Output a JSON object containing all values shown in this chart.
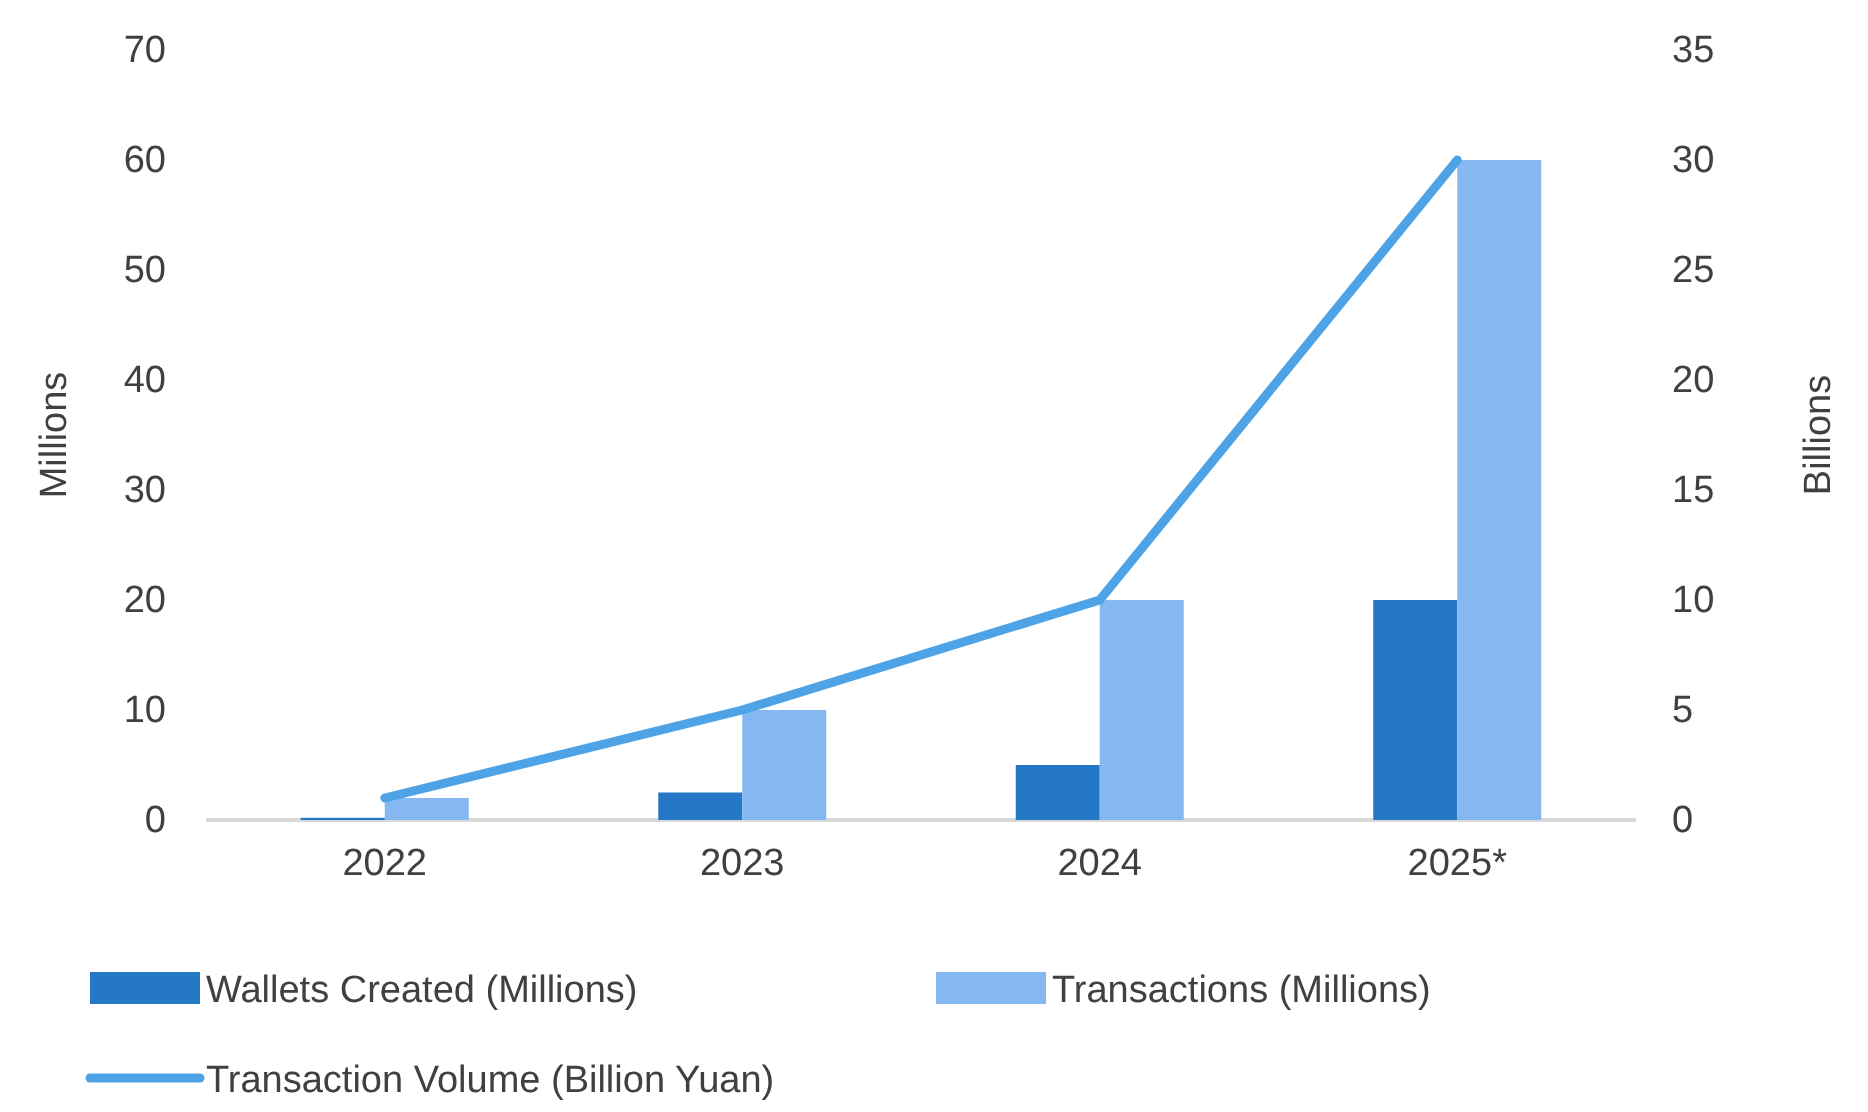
{
  "chart_data": {
    "type": "bar",
    "categories": [
      "2022",
      "2023",
      "2024",
      "2025*"
    ],
    "series": [
      {
        "name": "Wallets Created (Millions)",
        "color": "#2478c6",
        "values": [
          0.2,
          2.5,
          5,
          20
        ]
      },
      {
        "name": "Transactions (Millions)",
        "color": "#85b8f0",
        "values": [
          2,
          10,
          20,
          60
        ]
      },
      {
        "name": "Transaction Volume (Billion Yuan)",
        "type": "line",
        "axis": "y2",
        "color": "#4ea3e6",
        "values": [
          1,
          5,
          10,
          30
        ]
      }
    ],
    "ylabel": "Millions",
    "y2label": "Billions",
    "ylim": [
      0,
      70
    ],
    "yticks": [
      0,
      10,
      20,
      30,
      40,
      50,
      60,
      70
    ],
    "y2lim": [
      0,
      35
    ],
    "y2ticks": [
      0,
      5,
      10,
      15,
      20,
      25,
      30,
      35
    ],
    "grid": false,
    "legend": "bottom",
    "marker": "none"
  }
}
